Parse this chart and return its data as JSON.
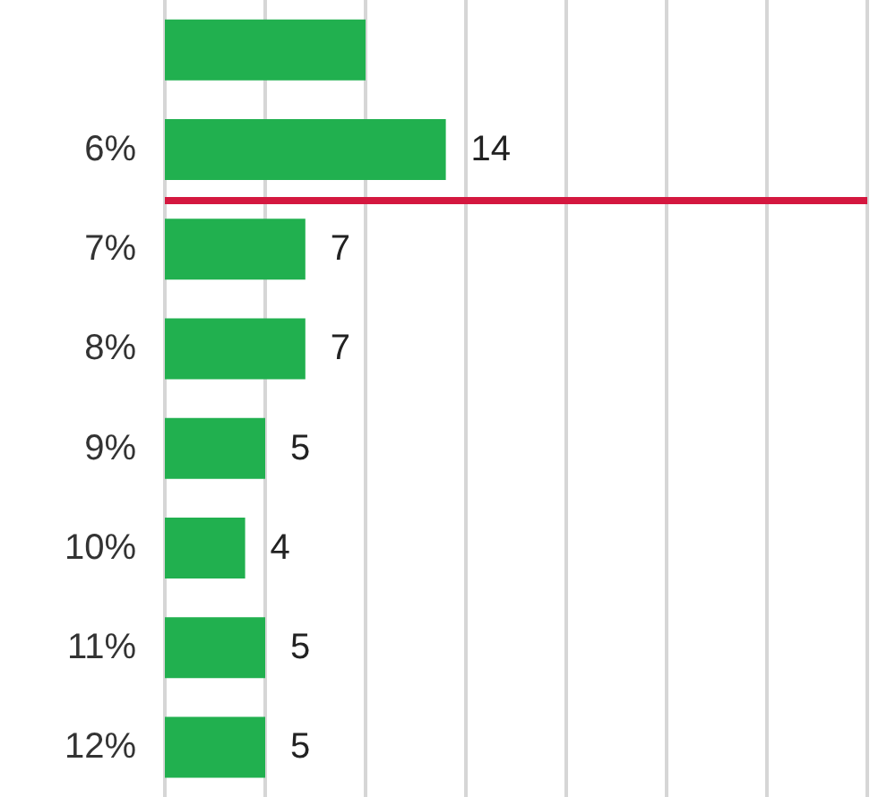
{
  "chart_data": {
    "type": "bar",
    "orientation": "horizontal",
    "categories": [
      null,
      "6%",
      "7%",
      "8%",
      "9%",
      "10%",
      "11%",
      "12%"
    ],
    "values": [
      10,
      14,
      7,
      7,
      5,
      4,
      5,
      5
    ],
    "value_labels": [
      null,
      "14",
      "7",
      "7",
      "5",
      "4",
      "5",
      "5"
    ],
    "color": "#21b04f",
    "xlim": [
      0,
      35
    ],
    "xticks": [
      {
        "value": 0,
        "label": null
      },
      {
        "value": 5,
        "label": null
      },
      {
        "value": 10,
        "label": null
      },
      {
        "value": 15,
        "label": null
      },
      {
        "value": 20,
        "label": null
      },
      {
        "value": 25,
        "label": null
      },
      {
        "value": 30,
        "label": null
      },
      {
        "value": 35,
        "label": null
      }
    ],
    "tick_labels": "y",
    "grid": "x",
    "ref_lines": [
      {
        "axis": "y",
        "value": "7%",
        "color": "#d4173f"
      }
    ]
  }
}
